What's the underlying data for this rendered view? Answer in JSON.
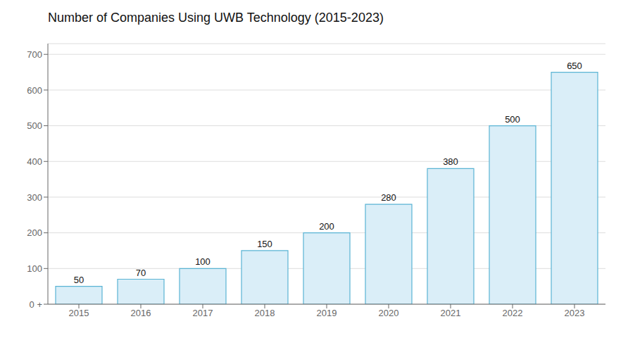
{
  "chart_data": {
    "type": "bar",
    "title": "Number of Companies Using UWB Technology (2015-2023)",
    "categories": [
      "2015",
      "2016",
      "2017",
      "2018",
      "2019",
      "2020",
      "2021",
      "2022",
      "2023"
    ],
    "values": [
      50,
      70,
      100,
      150,
      200,
      280,
      380,
      500,
      650
    ],
    "color": "#daeef8",
    "ylim": [
      0,
      730
    ],
    "yticks": [
      {
        "value": 0,
        "label": "0 +"
      },
      100,
      200,
      300,
      400,
      500,
      600,
      700
    ],
    "grid": true,
    "data_labels": true
  }
}
